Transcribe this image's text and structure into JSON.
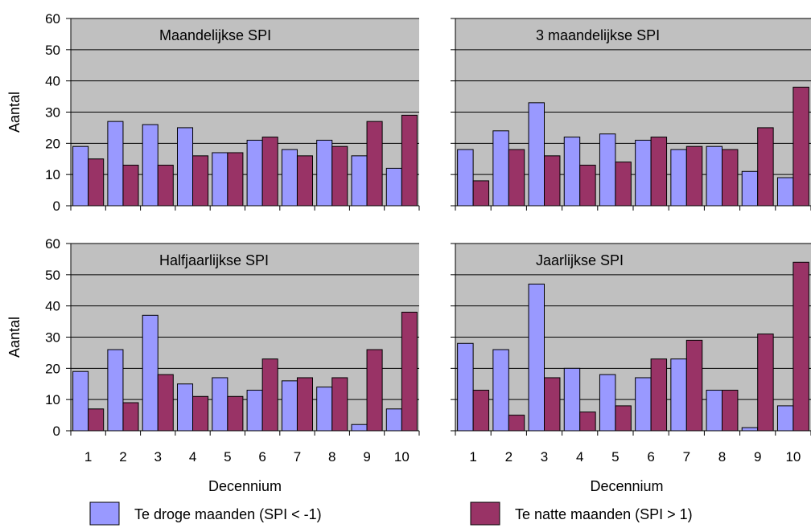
{
  "legend": [
    {
      "label": "Te droge maanden (SPI < -1)",
      "color": "#9999ff"
    },
    {
      "label": "Te natte maanden (SPI > 1)",
      "color": "#993366"
    }
  ],
  "chart_data": [
    {
      "type": "bar",
      "title": "Maandelijkse SPI",
      "ylabel": "Aantal",
      "xlabel": "",
      "categories": [
        "1",
        "2",
        "3",
        "4",
        "5",
        "6",
        "7",
        "8",
        "9",
        "10"
      ],
      "ylim": [
        0,
        60
      ],
      "yticks": [
        "0",
        "10",
        "20",
        "30",
        "40",
        "50",
        "60"
      ],
      "series": [
        {
          "name": "Te droge maanden (SPI < -1)",
          "values": [
            19,
            27,
            26,
            25,
            17,
            21,
            18,
            21,
            16,
            12
          ]
        },
        {
          "name": "Te natte maanden (SPI > 1)",
          "values": [
            15,
            13,
            13,
            16,
            17,
            22,
            16,
            19,
            27,
            29
          ]
        }
      ]
    },
    {
      "type": "bar",
      "title": "3 maandelijkse SPI",
      "ylabel": "",
      "xlabel": "",
      "categories": [
        "1",
        "2",
        "3",
        "4",
        "5",
        "6",
        "7",
        "8",
        "9",
        "10"
      ],
      "ylim": [
        0,
        60
      ],
      "series": [
        {
          "name": "Te droge maanden (SPI < -1)",
          "values": [
            18,
            24,
            33,
            22,
            23,
            21,
            18,
            19,
            11,
            9
          ]
        },
        {
          "name": "Te natte maanden (SPI > 1)",
          "values": [
            8,
            18,
            16,
            13,
            14,
            22,
            19,
            18,
            25,
            38
          ]
        }
      ]
    },
    {
      "type": "bar",
      "title": "Halfjaarlijkse SPI",
      "ylabel": "Aantal",
      "xlabel": "Decennium",
      "categories": [
        "1",
        "2",
        "3",
        "4",
        "5",
        "6",
        "7",
        "8",
        "9",
        "10"
      ],
      "ylim": [
        0,
        60
      ],
      "yticks": [
        "0",
        "10",
        "20",
        "30",
        "40",
        "50",
        "60"
      ],
      "series": [
        {
          "name": "Te droge maanden (SPI < -1)",
          "values": [
            19,
            26,
            37,
            15,
            17,
            13,
            16,
            14,
            2,
            7
          ]
        },
        {
          "name": "Te natte maanden (SPI > 1)",
          "values": [
            7,
            9,
            18,
            11,
            11,
            23,
            17,
            17,
            26,
            38
          ]
        }
      ]
    },
    {
      "type": "bar",
      "title": "Jaarlijkse SPI",
      "ylabel": "",
      "xlabel": "Decennium",
      "categories": [
        "1",
        "2",
        "3",
        "4",
        "5",
        "6",
        "7",
        "8",
        "9",
        "10"
      ],
      "ylim": [
        0,
        60
      ],
      "series": [
        {
          "name": "Te droge maanden (SPI < -1)",
          "values": [
            28,
            26,
            47,
            20,
            18,
            17,
            23,
            13,
            1,
            8
          ]
        },
        {
          "name": "Te natte maanden (SPI > 1)",
          "values": [
            13,
            5,
            17,
            6,
            8,
            23,
            29,
            13,
            31,
            54
          ]
        }
      ]
    }
  ]
}
